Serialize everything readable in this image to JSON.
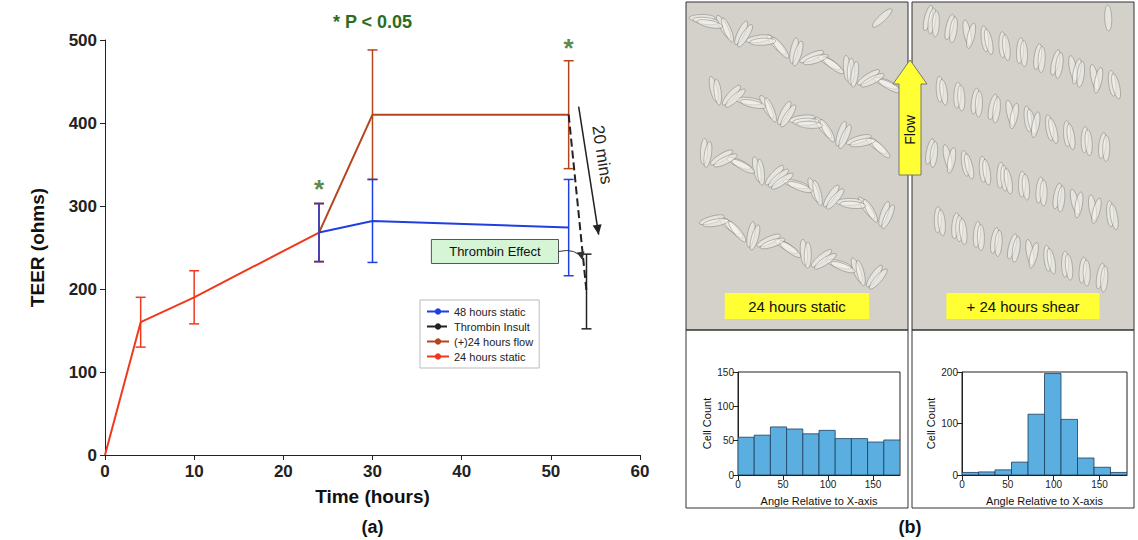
{
  "chart_data": [
    {
      "type": "line",
      "xlabel": "Time (hours)",
      "ylabel": "TEER (ohms)",
      "xlim": [
        0,
        60
      ],
      "xticks": [
        0,
        10,
        20,
        30,
        40,
        50,
        60
      ],
      "ylim": [
        0,
        500
      ],
      "yticks": [
        0,
        100,
        200,
        300,
        400,
        500
      ],
      "grid": false,
      "legend": "lower right",
      "series": [
        {
          "name": "48 hours static",
          "color": "#1f3fe0",
          "line_style": "solid",
          "x": [
            24,
            30,
            52
          ],
          "values": [
            268,
            282,
            274
          ],
          "errors": [
            35,
            50,
            58
          ]
        },
        {
          "name": "Thrombin Insult",
          "color": "#222222",
          "line_style": "dashed",
          "x": [
            52,
            54
          ],
          "values": [
            410,
            197
          ],
          "errors": [
            null,
            45
          ]
        },
        {
          "name": "(+)24 hours flow",
          "color": "#b5461c",
          "line_style": "solid",
          "x": [
            24,
            30,
            52
          ],
          "values": [
            268,
            410,
            410
          ],
          "errors": [
            35,
            78,
            65
          ]
        },
        {
          "name": "24 hours static",
          "color": "#f0381c",
          "line_style": "solid",
          "x": [
            0,
            4,
            10,
            24
          ],
          "values": [
            0,
            160,
            190,
            268
          ],
          "errors": [
            null,
            30,
            32,
            35
          ]
        }
      ],
      "annotations": [
        {
          "kind": "note",
          "text": "* P < 0.05",
          "color": "#2e6b1f"
        },
        {
          "kind": "marker",
          "text": "*",
          "x": 24,
          "y": 320,
          "color": "#2e6b1f"
        },
        {
          "kind": "marker",
          "text": "*",
          "x": 52,
          "y": 490,
          "color": "#2e6b1f"
        },
        {
          "kind": "arrow",
          "text": "20 mins",
          "color": "#222222"
        },
        {
          "kind": "callout",
          "text": "Thrombin Effect",
          "color": "#d6f5d6"
        }
      ]
    },
    {
      "type": "histogram",
      "image_label": "24 hours static",
      "xlabel": "Angle Relative to X-axis",
      "ylabel": "Cell Count",
      "bins": [
        0,
        18,
        36,
        54,
        72,
        90,
        108,
        126,
        144,
        162,
        180
      ],
      "counts": [
        55,
        58,
        70,
        67,
        60,
        65,
        53,
        53,
        48,
        51
      ],
      "color": "#5aaee0",
      "xlim": [
        0,
        180
      ],
      "xticks": [
        0,
        50,
        100,
        150
      ],
      "ylim": [
        0,
        150
      ],
      "yticks": [
        0,
        50,
        100,
        150
      ]
    },
    {
      "type": "histogram",
      "image_label": "+ 24 hours shear",
      "xlabel": "Angle Relative to X-axis",
      "ylabel": "Cell Count",
      "bins": [
        0,
        18,
        36,
        54,
        72,
        90,
        108,
        126,
        144,
        162,
        180
      ],
      "counts": [
        5,
        6,
        10,
        25,
        118,
        197,
        108,
        33,
        15,
        5
      ],
      "color": "#5aaee0",
      "xlim": [
        0,
        180
      ],
      "xticks": [
        0,
        50,
        100,
        150
      ],
      "ylim": [
        0,
        200
      ],
      "yticks": [
        0,
        100,
        200
      ]
    }
  ],
  "panel_labels": [
    "(a)",
    "(b)"
  ],
  "flow_label": "Flow"
}
